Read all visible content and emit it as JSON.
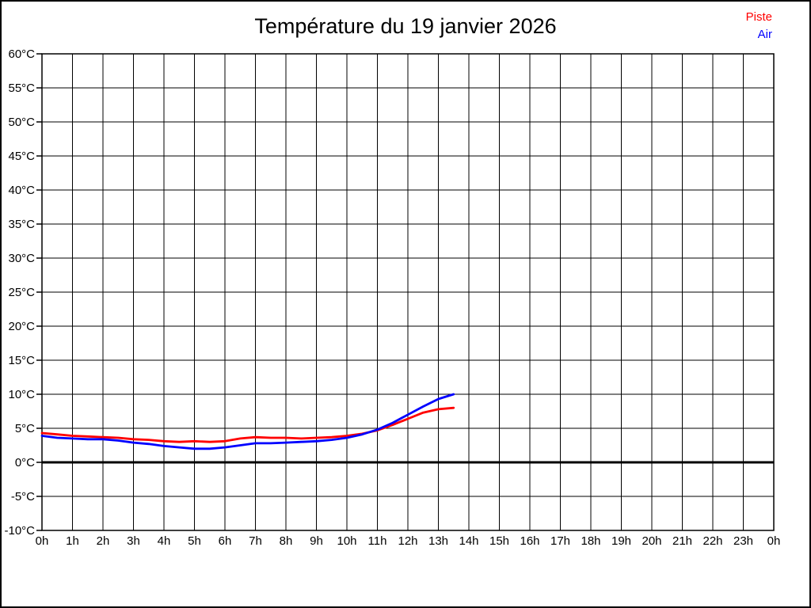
{
  "title": "Température du 19 janvier 2026",
  "legend": {
    "piste": {
      "label": "Piste",
      "color": "#ff0000"
    },
    "air": {
      "label": "Air",
      "color": "#0000ff"
    }
  },
  "chart_data": {
    "type": "line",
    "title": "Température du 19 janvier 2026",
    "xlabel": "",
    "ylabel": "",
    "xlim": [
      0,
      24
    ],
    "ylim": [
      -10,
      60
    ],
    "x_tick_step": 1,
    "y_tick_step": 5,
    "grid": true,
    "legend_position": "top-right",
    "zero_line": {
      "value": 0,
      "color": "#000000",
      "width": 3
    },
    "x_tick_labels": [
      "0h",
      "1h",
      "2h",
      "3h",
      "4h",
      "5h",
      "6h",
      "7h",
      "8h",
      "9h",
      "10h",
      "11h",
      "12h",
      "13h",
      "14h",
      "15h",
      "16h",
      "17h",
      "18h",
      "19h",
      "20h",
      "21h",
      "22h",
      "23h",
      "0h"
    ],
    "y_tick_labels": [
      "60°C",
      "55°C",
      "50°C",
      "45°C",
      "40°C",
      "35°C",
      "30°C",
      "25°C",
      "20°C",
      "15°C",
      "10°C",
      "5°C",
      "0°C",
      "-5°C",
      "-10°C"
    ],
    "y_tick_values": [
      60,
      55,
      50,
      45,
      40,
      35,
      30,
      25,
      20,
      15,
      10,
      5,
      0,
      -5,
      -10
    ],
    "series": [
      {
        "name": "Piste",
        "color": "#ff0000",
        "x": [
          0,
          0.5,
          1,
          1.5,
          2,
          2.5,
          3,
          3.5,
          4,
          4.5,
          5,
          5.5,
          6,
          6.5,
          7,
          7.5,
          8,
          8.5,
          9,
          9.5,
          10,
          10.5,
          11,
          11.5,
          12,
          12.5,
          13,
          13.5
        ],
        "y": [
          4.3,
          4.1,
          3.9,
          3.8,
          3.7,
          3.6,
          3.4,
          3.3,
          3.1,
          3.0,
          3.1,
          3.0,
          3.1,
          3.5,
          3.7,
          3.6,
          3.6,
          3.5,
          3.6,
          3.7,
          3.9,
          4.2,
          4.7,
          5.5,
          6.4,
          7.3,
          7.8,
          8.0
        ]
      },
      {
        "name": "Air",
        "color": "#0000ff",
        "x": [
          0,
          0.5,
          1,
          1.5,
          2,
          2.5,
          3,
          3.5,
          4,
          4.5,
          5,
          5.5,
          6,
          6.5,
          7,
          7.5,
          8,
          8.5,
          9,
          9.5,
          10,
          10.5,
          11,
          11.5,
          12,
          12.5,
          13,
          13.5
        ],
        "y": [
          3.9,
          3.6,
          3.5,
          3.4,
          3.4,
          3.2,
          2.9,
          2.7,
          2.4,
          2.2,
          2.0,
          2.0,
          2.2,
          2.5,
          2.8,
          2.8,
          2.9,
          3.0,
          3.1,
          3.3,
          3.6,
          4.1,
          4.8,
          5.8,
          7.0,
          8.2,
          9.3,
          10.0
        ]
      }
    ]
  }
}
